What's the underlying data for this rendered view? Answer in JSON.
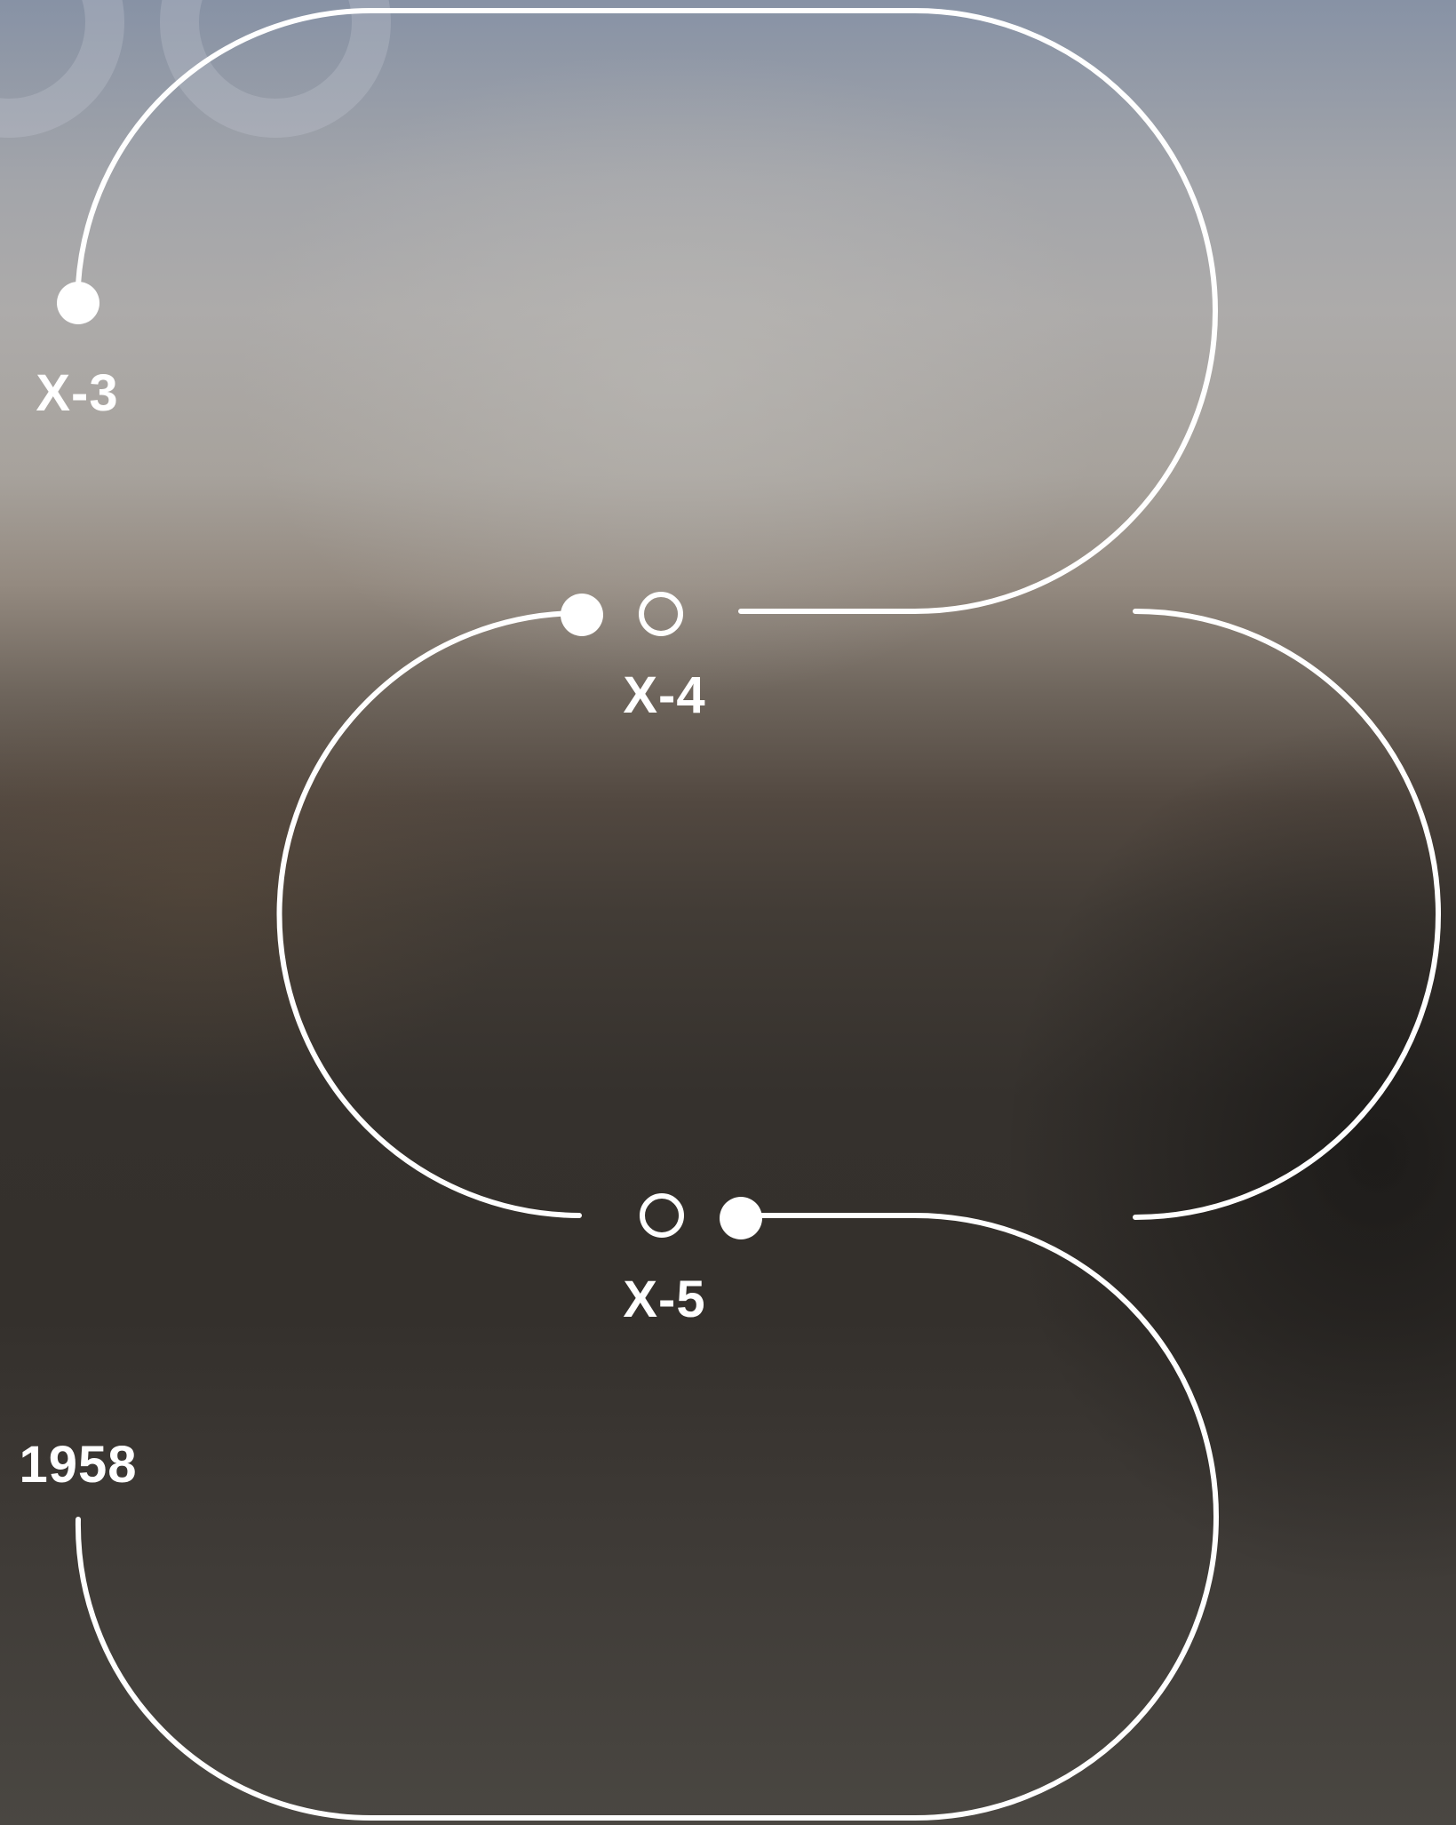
{
  "diagram": {
    "nodes": [
      {
        "id": "x3",
        "label": "X-3"
      },
      {
        "id": "x4",
        "label": "X-4"
      },
      {
        "id": "x5",
        "label": "X-5"
      }
    ],
    "year_label": "1958"
  }
}
